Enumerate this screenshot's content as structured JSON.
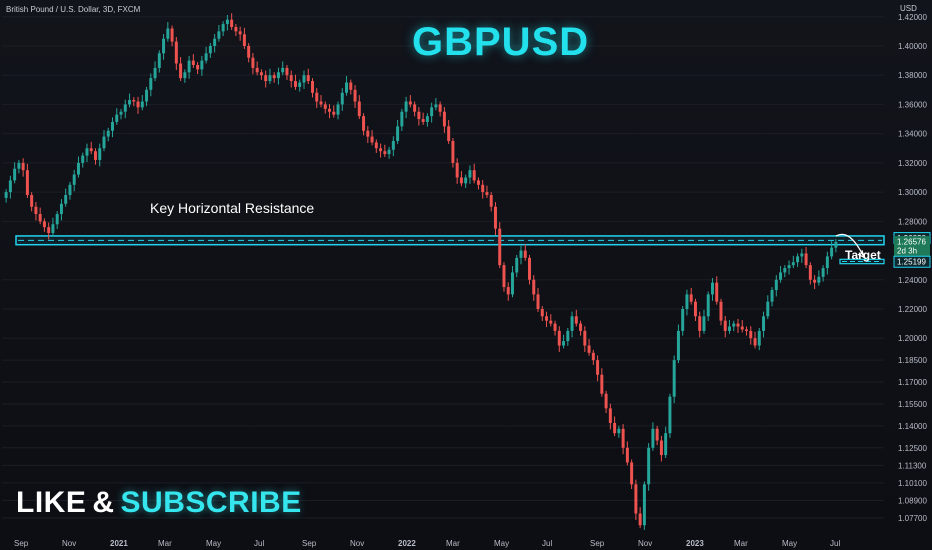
{
  "header": {
    "symbol_line": "British Pound / U.S. Dollar, 3D, FXCM"
  },
  "title": "GBPUSD",
  "cta": {
    "like": "LIKE",
    "amp": "&",
    "subscribe": "SUBSCRIBE"
  },
  "annotations": {
    "resistance_label": "Key Horizontal Resistance",
    "target_label": "Target"
  },
  "colors": {
    "up": "#26a69a",
    "down": "#ef5350",
    "zone": "#22d3ee",
    "accent": "#22e0ec"
  },
  "chart_data": {
    "type": "candlestick",
    "y_axis_unit": "USD",
    "ylim": [
      1.066,
      1.426
    ],
    "y_ticks": [
      "1.42000",
      "1.40000",
      "1.38000",
      "1.36000",
      "1.34000",
      "1.32000",
      "1.30000",
      "1.28000",
      "1.24000",
      "1.22000",
      "1.20000",
      "1.18500",
      "1.17000",
      "1.15500",
      "1.14000",
      "1.12500",
      "1.11300",
      "1.10100",
      "1.08900",
      "1.07700"
    ],
    "x_ticks": [
      "Sep",
      "Nov",
      "2021",
      "Mar",
      "May",
      "Jul",
      "Sep",
      "Nov",
      "2022",
      "Mar",
      "May",
      "Jul",
      "Sep",
      "Nov",
      "2023",
      "Mar",
      "May",
      "Jul"
    ],
    "price_badges": [
      {
        "value": "1.26820",
        "style": "outline"
      },
      {
        "value": "1.26576",
        "style": "filled"
      },
      {
        "value": "2d 3h",
        "style": "filled"
      },
      {
        "value": "1.25199",
        "style": "outline"
      }
    ],
    "resistance_zone": [
      1.264,
      1.27
    ],
    "target_zone": [
      1.251,
      1.254
    ],
    "series_close": [
      1.3,
      1.308,
      1.316,
      1.32,
      1.315,
      1.298,
      1.29,
      1.285,
      1.28,
      1.276,
      1.272,
      1.278,
      1.285,
      1.292,
      1.298,
      1.305,
      1.312,
      1.32,
      1.325,
      1.33,
      1.328,
      1.322,
      1.33,
      1.338,
      1.342,
      1.348,
      1.353,
      1.355,
      1.36,
      1.363,
      1.362,
      1.358,
      1.362,
      1.37,
      1.378,
      1.385,
      1.395,
      1.405,
      1.412,
      1.403,
      1.388,
      1.378,
      1.382,
      1.39,
      1.387,
      1.384,
      1.39,
      1.395,
      1.4,
      1.405,
      1.41,
      1.415,
      1.418,
      1.413,
      1.41,
      1.408,
      1.4,
      1.392,
      1.385,
      1.382,
      1.38,
      1.376,
      1.38,
      1.378,
      1.382,
      1.385,
      1.38,
      1.376,
      1.372,
      1.375,
      1.38,
      1.376,
      1.368,
      1.362,
      1.36,
      1.357,
      1.355,
      1.353,
      1.36,
      1.368,
      1.375,
      1.37,
      1.362,
      1.352,
      1.342,
      1.338,
      1.334,
      1.33,
      1.328,
      1.326,
      1.329,
      1.335,
      1.345,
      1.355,
      1.362,
      1.36,
      1.355,
      1.35,
      1.348,
      1.352,
      1.358,
      1.36,
      1.355,
      1.345,
      1.335,
      1.32,
      1.31,
      1.306,
      1.31,
      1.315,
      1.308,
      1.305,
      1.3,
      1.298,
      1.29,
      1.275,
      1.25,
      1.235,
      1.23,
      1.245,
      1.255,
      1.26,
      1.255,
      1.24,
      1.23,
      1.22,
      1.215,
      1.212,
      1.21,
      1.205,
      1.195,
      1.198,
      1.205,
      1.215,
      1.21,
      1.205,
      1.195,
      1.19,
      1.185,
      1.175,
      1.162,
      1.152,
      1.142,
      1.135,
      1.138,
      1.125,
      1.115,
      1.1,
      1.08,
      1.072,
      1.1,
      1.125,
      1.138,
      1.13,
      1.12,
      1.135,
      1.16,
      1.185,
      1.205,
      1.22,
      1.23,
      1.225,
      1.215,
      1.205,
      1.215,
      1.23,
      1.238,
      1.225,
      1.212,
      1.205,
      1.208,
      1.21,
      1.208,
      1.206,
      1.205,
      1.2,
      1.195,
      1.205,
      1.215,
      1.225,
      1.233,
      1.24,
      1.245,
      1.248,
      1.25,
      1.252,
      1.256,
      1.258,
      1.25,
      1.24,
      1.238,
      1.242,
      1.248,
      1.256,
      1.262,
      1.2658
    ]
  }
}
